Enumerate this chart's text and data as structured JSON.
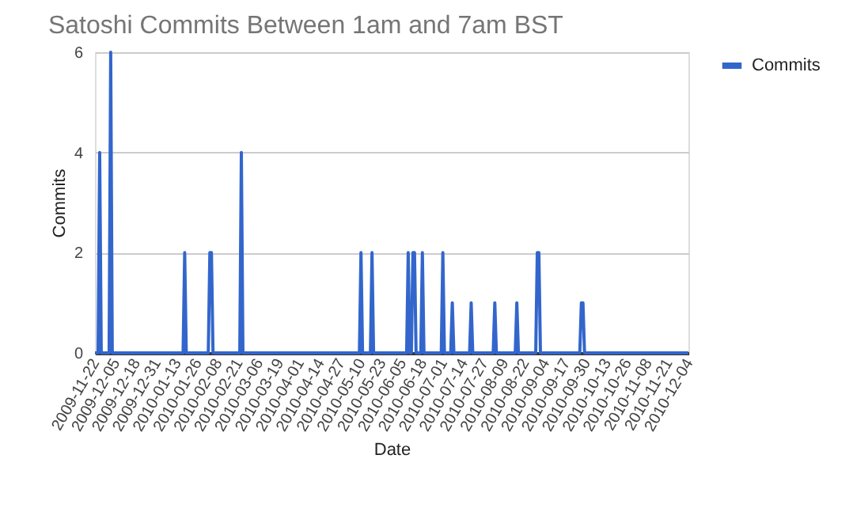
{
  "chart_data": {
    "type": "line",
    "title": "Satoshi Commits Between 1am and 7am BST",
    "xlabel": "Date",
    "ylabel": "Commits",
    "x": [
      "2009-11-22",
      "2009-11-24",
      "2009-11-25",
      "2009-11-26",
      "2009-12-01",
      "2009-12-02",
      "2009-12-03",
      "2010-01-17",
      "2010-01-18",
      "2010-01-19",
      "2010-02-02",
      "2010-02-03",
      "2010-02-04",
      "2010-02-05",
      "2010-02-22",
      "2010-02-23",
      "2010-02-24",
      "2010-05-09",
      "2010-05-10",
      "2010-05-11",
      "2010-05-16",
      "2010-05-17",
      "2010-05-18",
      "2010-06-08",
      "2010-06-09",
      "2010-06-10",
      "2010-06-11",
      "2010-06-12",
      "2010-06-13",
      "2010-06-14",
      "2010-06-17",
      "2010-06-18",
      "2010-06-19",
      "2010-06-30",
      "2010-07-01",
      "2010-07-02",
      "2010-07-06",
      "2010-07-07",
      "2010-07-08",
      "2010-07-18",
      "2010-07-19",
      "2010-07-20",
      "2010-08-02",
      "2010-08-03",
      "2010-08-04",
      "2010-08-16",
      "2010-08-17",
      "2010-08-18",
      "2010-08-29",
      "2010-08-30",
      "2010-08-31",
      "2010-09-01",
      "2010-09-26",
      "2010-09-27",
      "2010-09-28",
      "2010-09-29",
      "2010-12-04"
    ],
    "series": [
      {
        "name": "Commits",
        "color": "#3366cc",
        "values": [
          0,
          0,
          4,
          0,
          0,
          6,
          0,
          0,
          2,
          0,
          0,
          2,
          2,
          0,
          0,
          4,
          0,
          0,
          2,
          0,
          0,
          2,
          0,
          0,
          2,
          0,
          0,
          2,
          2,
          0,
          0,
          2,
          0,
          0,
          2,
          0,
          0,
          1,
          0,
          0,
          1,
          0,
          0,
          1,
          0,
          0,
          1,
          0,
          0,
          2,
          2,
          0,
          0,
          1,
          1,
          0,
          0
        ]
      }
    ],
    "xlim": [
      "2009-11-22",
      "2010-12-04"
    ],
    "xticks": [
      "2009-11-22",
      "2009-12-05",
      "2009-12-18",
      "2009-12-31",
      "2010-01-13",
      "2010-01-26",
      "2010-02-08",
      "2010-02-21",
      "2010-03-06",
      "2010-03-19",
      "2010-04-01",
      "2010-04-14",
      "2010-04-27",
      "2010-05-10",
      "2010-05-23",
      "2010-06-05",
      "2010-06-18",
      "2010-07-01",
      "2010-07-14",
      "2010-07-27",
      "2010-08-09",
      "2010-08-22",
      "2010-09-04",
      "2010-09-17",
      "2010-09-30",
      "2010-10-13",
      "2010-10-26",
      "2010-11-08",
      "2010-11-21",
      "2010-12-04"
    ],
    "ylim": [
      0,
      6
    ],
    "yticks": [
      0,
      2,
      4,
      6
    ],
    "grid": "y",
    "legend": "top right",
    "marker": "none",
    "line_style": "solid"
  }
}
